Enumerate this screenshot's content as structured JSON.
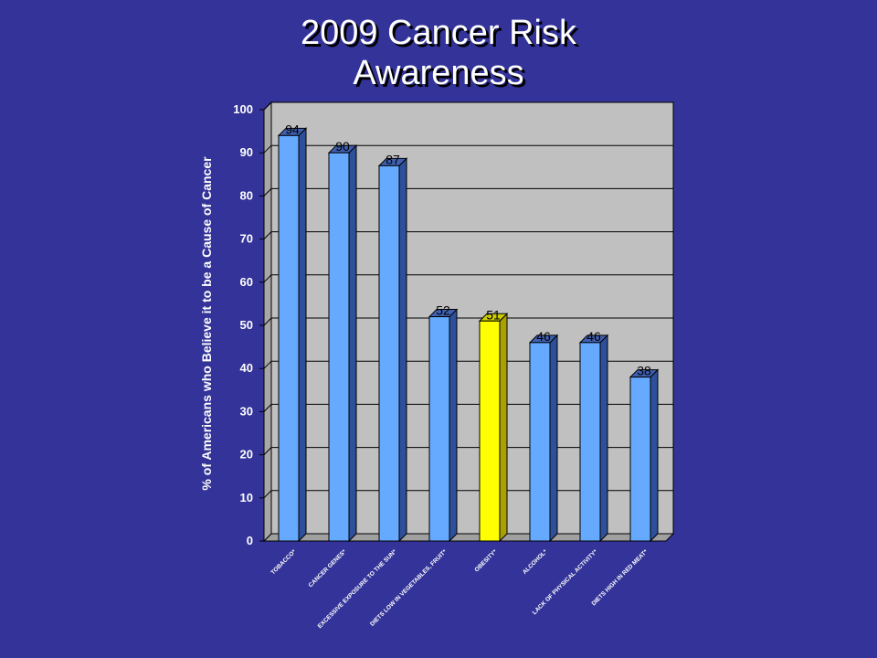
{
  "chart_data": {
    "type": "bar",
    "title_lines": [
      "2009 Cancer Risk",
      "Awareness"
    ],
    "ylabel": "% of Americans who Believe it to be a Cause of Cancer",
    "xlabel": "",
    "ylim": [
      0,
      100
    ],
    "yticks": [
      0,
      10,
      20,
      30,
      40,
      50,
      60,
      70,
      80,
      90,
      100
    ],
    "grid": true,
    "legend": "none",
    "categories": [
      "TOBACCO*",
      "CANCER GENES*",
      "EXCESSIVE EXPOSURE TO THE SUN*",
      "DIETS LOW IN VEGETABLES, FRUIT*",
      "OBESITY*",
      "ALCOHOL*",
      "LACK OF PHYSICAL ACTIVITY*",
      "DIETS HIGH IN RED MEAT*"
    ],
    "values": [
      94,
      90,
      87,
      52,
      51,
      46,
      46,
      38
    ],
    "highlight_index": 4,
    "colors": {
      "background": "#333399",
      "plot_area": "#c0c0c0",
      "bar": "#66aaff",
      "bar_side": "#2e4f99",
      "bar_top": "#3f5fb0",
      "highlight": "#ffff00",
      "highlight_side": "#aaa000",
      "highlight_top": "#cccc00",
      "text": "#ffffff"
    }
  }
}
